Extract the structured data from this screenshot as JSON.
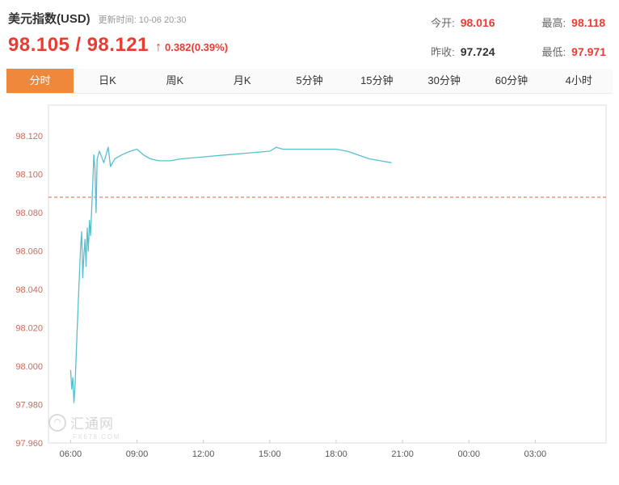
{
  "header": {
    "title": "美元指数(USD)",
    "update_time": "更新时间: 10-06 20:30",
    "bid": "98.105",
    "separator": "/",
    "ask": "98.121",
    "arrow": "↑",
    "change": "0.382(0.39%)",
    "stats": [
      {
        "label": "今开:",
        "value": "98.016"
      },
      {
        "label": "最高:",
        "value": "98.118"
      },
      {
        "label": "昨收:",
        "value": "97.724"
      },
      {
        "label": "最低:",
        "value": "97.971"
      }
    ]
  },
  "tabs": [
    {
      "key": "time-share",
      "label": "分时",
      "active": true
    },
    {
      "key": "daily-k",
      "label": "日K",
      "active": false
    },
    {
      "key": "weekly-k",
      "label": "周K",
      "active": false
    },
    {
      "key": "monthly-k",
      "label": "月K",
      "active": false
    },
    {
      "key": "5min",
      "label": "5分钟",
      "active": false
    },
    {
      "key": "15min",
      "label": "15分钟",
      "active": false
    },
    {
      "key": "30min",
      "label": "30分钟",
      "active": false
    },
    {
      "key": "60min",
      "label": "60分钟",
      "active": false
    },
    {
      "key": "4hour",
      "label": "4小时",
      "active": false
    }
  ],
  "watermark": {
    "name": "汇通网",
    "site": "FX678.COM"
  },
  "colors": {
    "accent-red": "#e93c32",
    "tab-active": "#f0883c",
    "dark-value": "#333333"
  },
  "chart_data": {
    "type": "line",
    "title": "",
    "xlabel": "",
    "ylabel": "",
    "x_unit": "hour-of-day (values > 24 are next day)",
    "x": [
      6.0,
      6.05,
      6.1,
      6.15,
      6.2,
      6.3,
      6.4,
      6.45,
      6.5,
      6.55,
      6.6,
      6.65,
      6.7,
      6.75,
      6.8,
      6.85,
      6.9,
      7.0,
      7.05,
      7.1,
      7.15,
      7.2,
      7.3,
      7.5,
      7.7,
      7.8,
      8.0,
      8.3,
      8.7,
      9.0,
      9.3,
      9.6,
      10.0,
      10.5,
      11.0,
      12.0,
      13.0,
      14.0,
      15.0,
      15.3,
      15.6,
      16.0,
      17.0,
      18.0,
      18.5,
      19.0,
      19.5,
      20.0,
      20.5
    ],
    "values": [
      97.998,
      97.988,
      97.994,
      97.981,
      97.99,
      98.02,
      98.048,
      98.062,
      98.07,
      98.046,
      98.058,
      98.066,
      98.052,
      98.072,
      98.06,
      98.076,
      98.068,
      98.095,
      98.11,
      98.103,
      98.08,
      98.108,
      98.112,
      98.106,
      98.114,
      98.104,
      98.108,
      98.11,
      98.112,
      98.113,
      98.11,
      98.108,
      98.107,
      98.107,
      98.108,
      98.109,
      98.11,
      98.111,
      98.112,
      98.114,
      98.113,
      98.113,
      98.113,
      98.113,
      98.112,
      98.11,
      98.108,
      98.107,
      98.106
    ],
    "y_ticks": [
      "98.120",
      "98.100",
      "98.080",
      "98.060",
      "98.040",
      "98.020",
      "98.000",
      "97.980",
      "97.960"
    ],
    "x_ticks": [
      {
        "hour": 6,
        "label": "06:00"
      },
      {
        "hour": 9,
        "label": "09:00"
      },
      {
        "hour": 12,
        "label": "12:00"
      },
      {
        "hour": 15,
        "label": "15:00"
      },
      {
        "hour": 18,
        "label": "18:00"
      },
      {
        "hour": 21,
        "label": "21:00"
      },
      {
        "hour": 24,
        "label": "00:00"
      },
      {
        "hour": 27,
        "label": "03:00"
      }
    ],
    "xlim": [
      5.0,
      30.2
    ],
    "ylim": [
      97.96,
      98.136
    ],
    "reference_line": 98.088,
    "grid": false,
    "legend": false,
    "line_color": "#58bfcf",
    "ref_color": "#e4604e",
    "y_label_color": "#c96a5c",
    "x_label_color": "#555555",
    "border_color": "#dddddd"
  }
}
